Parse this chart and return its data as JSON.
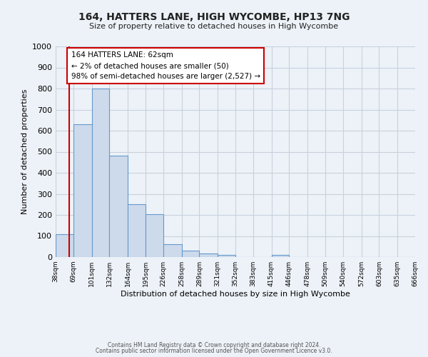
{
  "title": "164, HATTERS LANE, HIGH WYCOMBE, HP13 7NG",
  "subtitle": "Size of property relative to detached houses in High Wycombe",
  "xlabel": "Distribution of detached houses by size in High Wycombe",
  "ylabel": "Number of detached properties",
  "bar_edges": [
    38,
    69,
    101,
    132,
    164,
    195,
    226,
    258,
    289,
    321,
    352,
    383,
    415,
    446,
    478,
    509,
    540,
    572,
    603,
    635,
    666
  ],
  "bar_heights": [
    110,
    630,
    800,
    480,
    250,
    205,
    62,
    30,
    18,
    10,
    0,
    0,
    10,
    0,
    0,
    0,
    0,
    0,
    0,
    0
  ],
  "bar_color": "#cddaeb",
  "bar_edgecolor": "#6699cc",
  "property_value": 62,
  "vline_color": "#cc0000",
  "annotation_text": "164 HATTERS LANE: 62sqm\n← 2% of detached houses are smaller (50)\n98% of semi-detached houses are larger (2,527) →",
  "annotation_box_color": "#ffffff",
  "annotation_box_edgecolor": "#cc0000",
  "ylim": [
    0,
    1000
  ],
  "yticks": [
    0,
    100,
    200,
    300,
    400,
    500,
    600,
    700,
    800,
    900,
    1000
  ],
  "grid_color": "#c8d0dc",
  "background_color": "#edf2f8",
  "footer_line1": "Contains HM Land Registry data © Crown copyright and database right 2024.",
  "footer_line2": "Contains public sector information licensed under the Open Government Licence v3.0."
}
